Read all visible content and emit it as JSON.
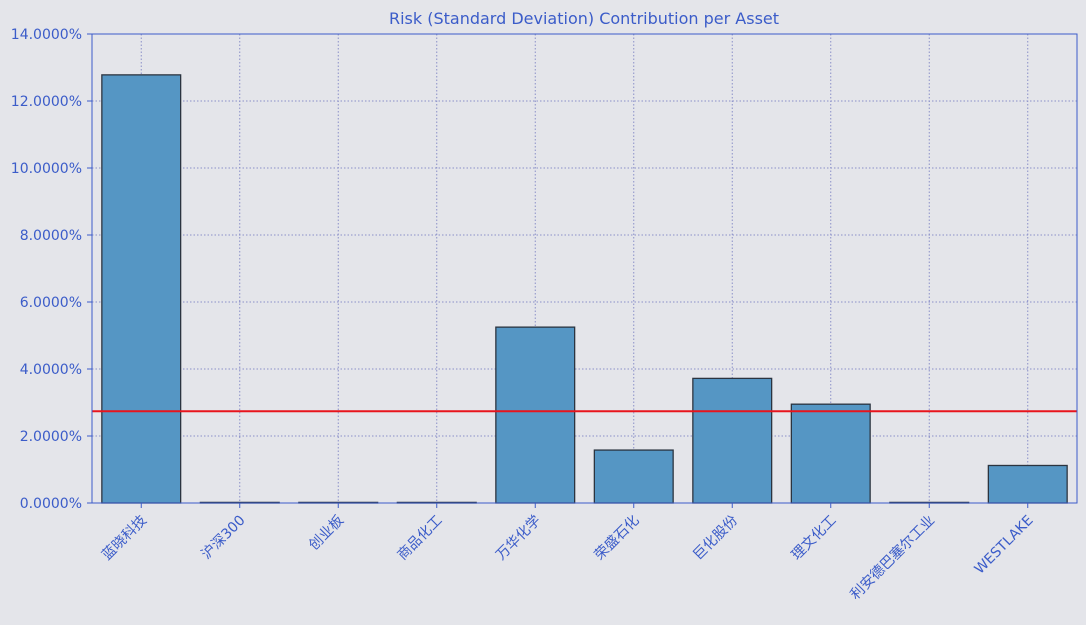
{
  "colors": {
    "background": "#e4e5ea",
    "bar_fill": "#5596c4",
    "bar_edge": "#2b3440",
    "axis": "#3b5cc9",
    "grid": "#8a8fc8",
    "reference_line": "#e8141c",
    "text": "#3b5cc9"
  },
  "chart_data": {
    "type": "bar",
    "title": "Risk (Standard Deviation) Contribution per Asset",
    "xlabel": "",
    "ylabel": "",
    "categories": [
      "蓝晓科技",
      "沪深300",
      "创业板",
      "商品化工",
      "万华化学",
      "荣盛石化",
      "巨化股份",
      "理文化工",
      "利安德巴塞尔工业",
      "WESTLAKE"
    ],
    "values": [
      12.78,
      0.0,
      0.0,
      0.0,
      5.25,
      1.58,
      3.72,
      2.95,
      0.0,
      1.12
    ],
    "value_unit": "%",
    "ylim": [
      0,
      14
    ],
    "yticks": [
      0,
      2,
      4,
      6,
      8,
      10,
      12,
      14
    ],
    "ytick_labels": [
      "0.0000%",
      "2.0000%",
      "4.0000%",
      "6.0000%",
      "8.0000%",
      "10.0000%",
      "12.0000%",
      "14.0000%"
    ],
    "reference_line": 2.74,
    "grid": true,
    "grid_style": "dotted",
    "x_label_rotation": -45
  }
}
